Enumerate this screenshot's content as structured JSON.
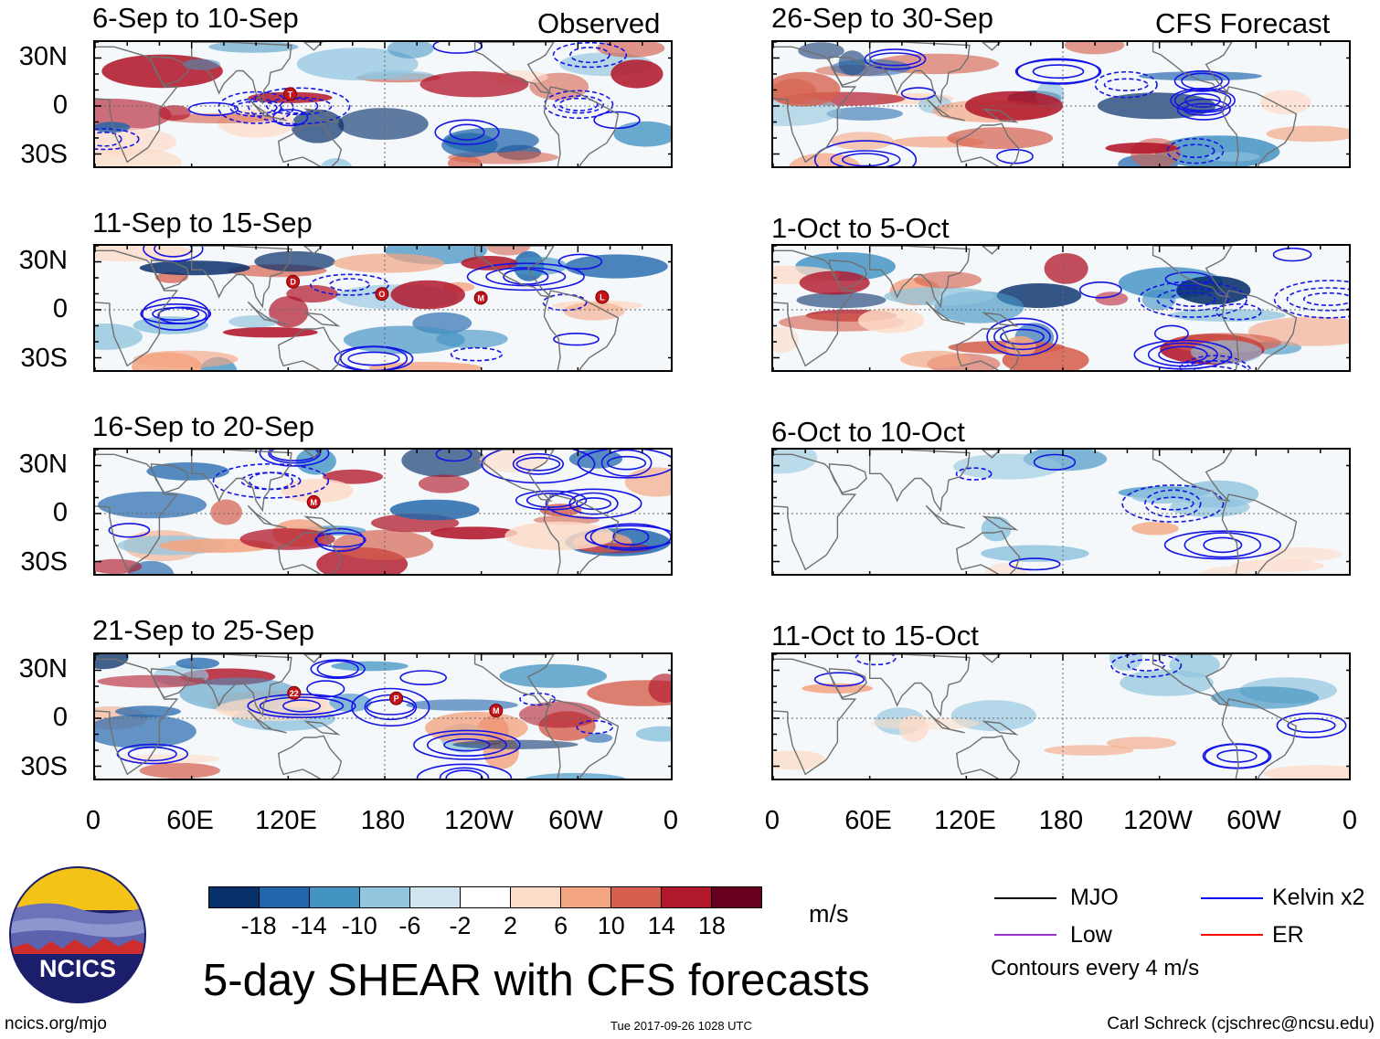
{
  "header": {
    "observed_label": "Observed",
    "forecast_label": "CFS Forecast"
  },
  "chart_data": [
    {
      "type": "heatmap",
      "column": "Observed",
      "title": "6-Sep to 10-Sep",
      "storms": [
        "T"
      ]
    },
    {
      "type": "heatmap",
      "column": "Observed",
      "title": "11-Sep to 15-Sep",
      "storms": [
        "D",
        "O",
        "M",
        "L"
      ]
    },
    {
      "type": "heatmap",
      "column": "Observed",
      "title": "16-Sep to 20-Sep",
      "storms": [
        "M"
      ]
    },
    {
      "type": "heatmap",
      "column": "Observed",
      "title": "21-Sep to 25-Sep",
      "storms": [
        "22",
        "P",
        "M"
      ]
    },
    {
      "type": "heatmap",
      "column": "CFS Forecast",
      "title": "26-Sep to 30-Sep",
      "storms": []
    },
    {
      "type": "heatmap",
      "column": "CFS Forecast",
      "title": "1-Oct to 5-Oct",
      "storms": []
    },
    {
      "type": "heatmap",
      "column": "CFS Forecast",
      "title": "6-Oct to 10-Oct",
      "storms": []
    },
    {
      "type": "heatmap",
      "column": "CFS Forecast",
      "title": "11-Oct to 15-Oct",
      "storms": []
    }
  ],
  "axes": {
    "y_ticks": [
      "30N",
      "0",
      "30S"
    ],
    "x_ticks": [
      "0",
      "60E",
      "120E",
      "180",
      "120W",
      "60W",
      "0"
    ],
    "lat_range": [
      -40,
      40
    ],
    "lon_range": [
      0,
      360
    ]
  },
  "colorbar": {
    "labels": [
      "-18",
      "-14",
      "-10",
      "-6",
      "-2",
      "2",
      "6",
      "10",
      "14",
      "18"
    ],
    "colors": [
      "#08306b",
      "#2166ac",
      "#4393c3",
      "#92c5de",
      "#d1e5f0",
      "#ffffff",
      "#fddbc7",
      "#f4a582",
      "#d6604d",
      "#b2182b",
      "#67001f"
    ],
    "units": "m/s"
  },
  "legend": {
    "items": [
      {
        "label": "MJO",
        "color": "#000000"
      },
      {
        "label": "Kelvin x2",
        "color": "#0000ff"
      },
      {
        "label": "Low",
        "color": "#9932cc"
      },
      {
        "label": "ER",
        "color": "#ff0000"
      }
    ],
    "contour_note": "Contours every 4 m/s"
  },
  "title": "5-day SHEAR with CFS forecasts",
  "logo_text": "NCICS",
  "footer": {
    "url": "ncics.org/mjo",
    "date": "Tue 2017-09-26 1028 UTC",
    "credit": "Carl Schreck (cjschrec@ncsu.edu)"
  }
}
